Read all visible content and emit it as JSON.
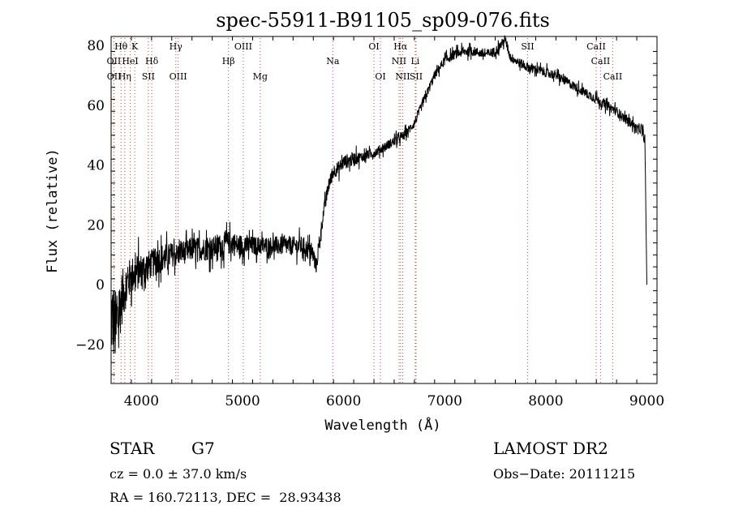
{
  "chart_data": {
    "type": "line",
    "title": "spec-55911-B91105_sp09-076.fits",
    "xlabel": "Wavelength (Å)",
    "ylabel": "Flux (relative)",
    "xlim": [
      3700,
      9100
    ],
    "ylim": [
      -33,
      83
    ],
    "xticks": [
      4000,
      5000,
      6000,
      7000,
      8000,
      9000
    ],
    "yticks": [
      -20,
      0,
      20,
      40,
      60,
      80
    ],
    "grid": false,
    "line_color": "#000000",
    "marker_color": "#d04040",
    "series": [
      {
        "x": [
          3700,
          3750,
          3800,
          3850,
          3900,
          3950,
          4000,
          4050,
          4100,
          4150,
          4200,
          4250,
          4300,
          4350,
          4400,
          4450,
          4500,
          4550,
          4600,
          4650,
          4700,
          4750,
          4800,
          4850,
          4900,
          4950,
          5000,
          5100,
          5200,
          5300,
          5400,
          5500,
          5600,
          5700,
          5730,
          5760,
          5800,
          5850,
          5900,
          5950,
          6000,
          6100,
          6200,
          6300,
          6400,
          6500,
          6600,
          6700,
          6800,
          6900,
          7000,
          7100,
          7200,
          7300,
          7400,
          7500,
          7550,
          7600,
          7650,
          7700,
          7800,
          7900,
          8000,
          8100,
          8200,
          8300,
          8400,
          8500,
          8600,
          8700,
          8800,
          8850,
          8900,
          8950,
          8980,
          9000
        ],
        "y": [
          -10,
          -15,
          -5,
          0,
          3,
          4,
          5,
          6,
          7,
          8,
          9,
          9,
          10,
          10,
          11,
          11,
          12,
          12,
          12,
          12,
          12,
          13,
          13,
          14,
          14,
          13,
          13,
          13,
          13,
          13,
          13,
          13,
          13,
          10,
          6,
          14,
          24,
          33,
          38,
          39,
          41,
          42,
          43,
          44,
          46,
          48,
          50,
          54,
          62,
          70,
          75,
          77,
          78,
          78,
          77,
          78,
          80,
          82,
          76,
          75,
          73,
          72,
          71,
          70,
          68,
          66,
          64,
          62,
          60,
          58,
          55,
          54,
          52,
          52,
          48,
          0
        ],
        "noise": [
          18,
          16,
          12,
          9,
          8,
          8,
          7,
          7,
          6,
          6,
          6,
          6,
          5,
          5,
          5,
          5,
          5,
          5,
          5,
          5,
          5,
          5,
          5,
          5,
          5,
          5,
          5,
          4,
          4,
          4,
          4,
          4,
          4,
          4,
          3,
          3,
          3,
          3,
          3,
          3,
          3,
          3,
          2,
          2,
          2,
          2,
          2,
          2,
          2,
          2,
          2,
          2,
          2,
          2,
          2,
          2,
          2,
          2,
          2,
          2,
          2,
          2,
          2,
          2,
          2,
          2,
          2,
          2,
          2,
          2,
          2,
          2,
          2,
          2,
          2,
          0
        ]
      }
    ],
    "lines": [
      {
        "label": "Hθ",
        "x": 3798,
        "row": 0
      },
      {
        "label": "K",
        "x": 3934,
        "row": 0
      },
      {
        "label": "Hγ",
        "x": 4340,
        "row": 0
      },
      {
        "label": "OIII",
        "x": 5007,
        "row": 0
      },
      {
        "label": "OI",
        "x": 6300,
        "row": 0
      },
      {
        "label": "Hα",
        "x": 6563,
        "row": 0
      },
      {
        "label": "SII",
        "x": 7820,
        "row": 0
      },
      {
        "label": "CaII",
        "x": 8498,
        "row": 0
      },
      {
        "label": "OII",
        "x": 3727,
        "row": 1
      },
      {
        "label": "HeI",
        "x": 3889,
        "row": 1
      },
      {
        "label": "Hδ",
        "x": 4102,
        "row": 1
      },
      {
        "label": "Hβ",
        "x": 4861,
        "row": 1
      },
      {
        "label": "Na",
        "x": 5893,
        "row": 1
      },
      {
        "label": "NII",
        "x": 6548,
        "row": 1
      },
      {
        "label": "Li",
        "x": 6708,
        "row": 1
      },
      {
        "label": "CaII",
        "x": 8542,
        "row": 1
      },
      {
        "label": "OII",
        "x": 3729,
        "row": 2
      },
      {
        "label": "Hη",
        "x": 3835,
        "row": 2
      },
      {
        "label": "SII",
        "x": 4068,
        "row": 2
      },
      {
        "label": "OIII",
        "x": 4363,
        "row": 2
      },
      {
        "label": "Mg",
        "x": 5175,
        "row": 2
      },
      {
        "label": "OI",
        "x": 6364,
        "row": 2
      },
      {
        "label": "NII",
        "x": 6584,
        "row": 2
      },
      {
        "label": "SII",
        "x": 6717,
        "row": 2
      },
      {
        "label": "CaII",
        "x": 8662,
        "row": 2
      }
    ]
  },
  "info": {
    "class_label": "STAR",
    "subclass": "G7",
    "survey": "LAMOST DR2",
    "cz": "cz = 0.0 ± 37.0 km/s",
    "obs_date": "Obs−Date: 20111215",
    "coords": "RA = 160.72113, DEC =  28.93438"
  }
}
